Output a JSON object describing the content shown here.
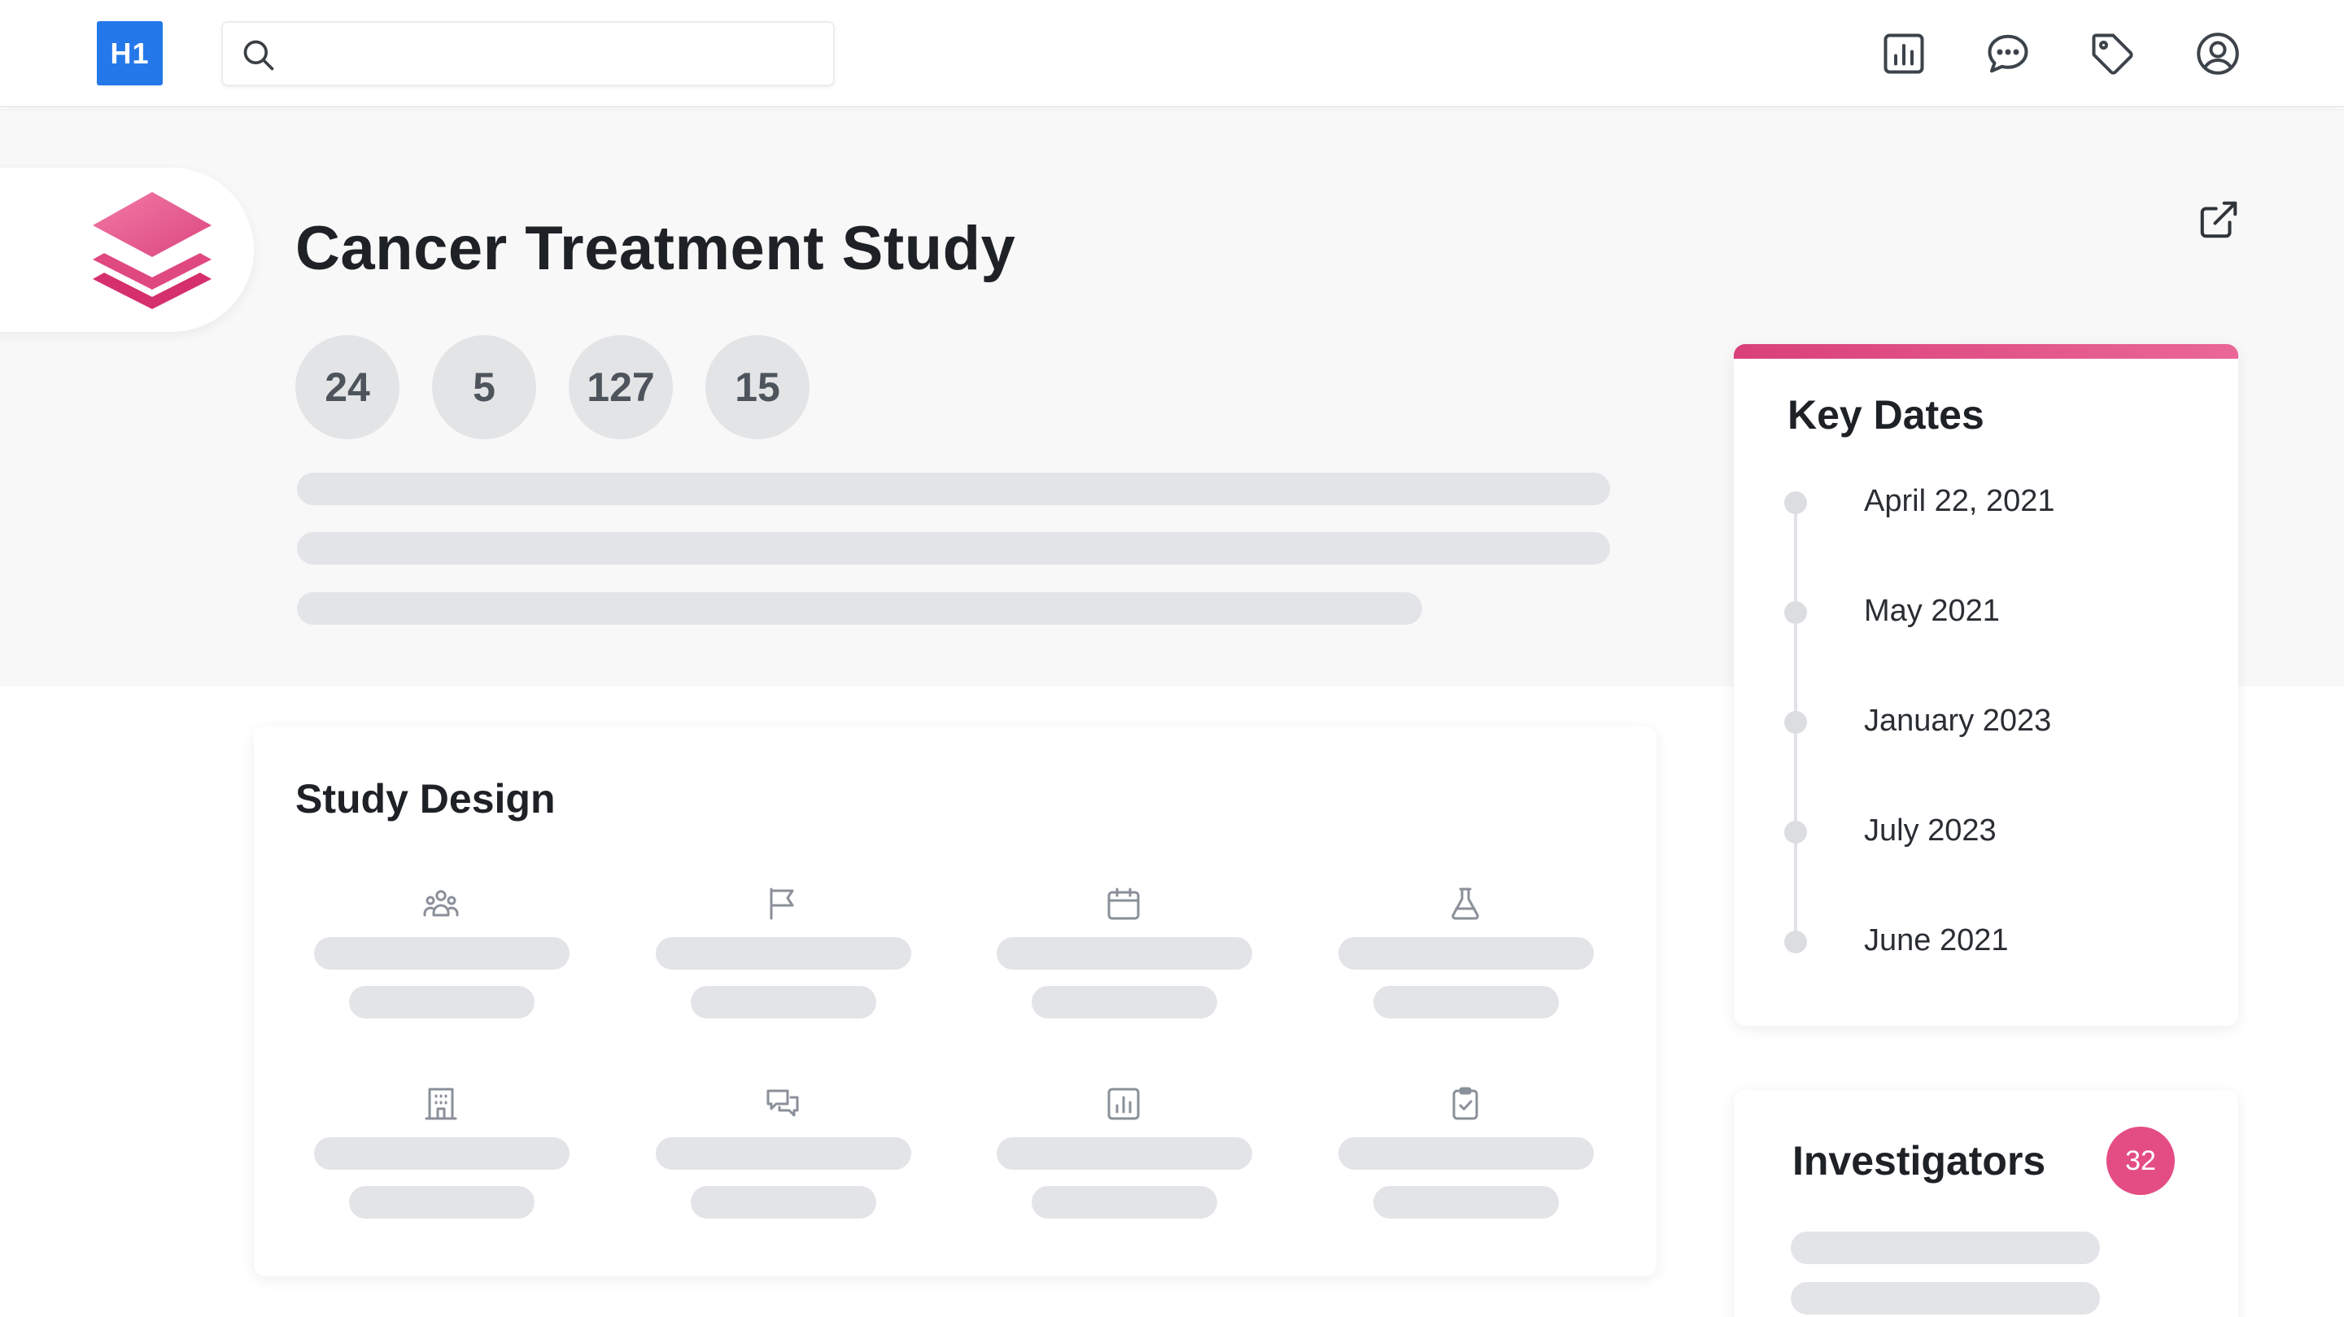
{
  "header": {
    "logo_text": "H1",
    "search": {
      "value": "",
      "placeholder": ""
    },
    "icons": [
      "analytics-icon",
      "chat-icon",
      "tag-icon",
      "user-account-icon"
    ]
  },
  "study": {
    "title": "Cancer Treatment Study",
    "stats": [
      "24",
      "5",
      "127",
      "15"
    ]
  },
  "study_design": {
    "title": "Study Design",
    "items": [
      {
        "icon": "people-group-icon"
      },
      {
        "icon": "flag-icon"
      },
      {
        "icon": "calendar-icon"
      },
      {
        "icon": "flask-icon"
      },
      {
        "icon": "building-icon"
      },
      {
        "icon": "conversation-icon"
      },
      {
        "icon": "bar-chart-icon"
      },
      {
        "icon": "clipboard-check-icon"
      }
    ]
  },
  "key_dates": {
    "title": "Key Dates",
    "dates": [
      "April 22, 2021",
      "May 2021",
      "January 2023",
      "July 2023",
      "June 2021"
    ]
  },
  "investigators": {
    "title": "Investigators",
    "count": "32"
  },
  "colors": {
    "brand_blue": "#2478ea",
    "accent_pink": "#e44d83",
    "skeleton_gray": "#e3e4e7"
  }
}
